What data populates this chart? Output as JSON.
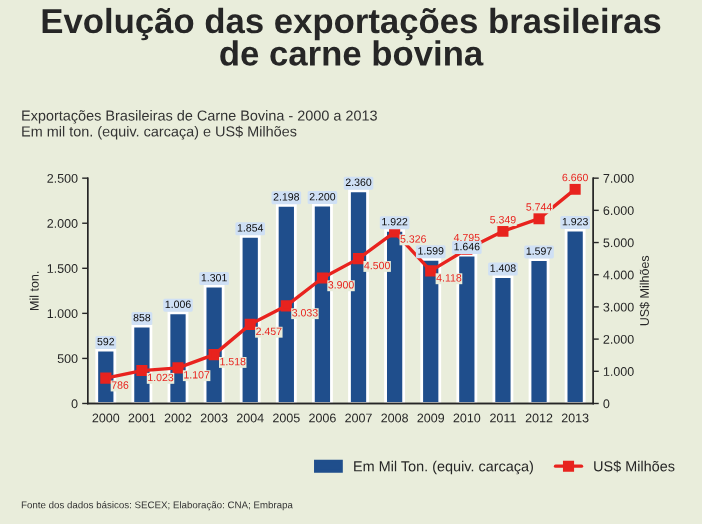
{
  "chart_data": {
    "type": "bar",
    "title": "Evolução das exportações brasileiras\nde carne bovina",
    "subtitle": "Exportações Brasileiras de Carne Bovina - 2000 a 2013\nEm mil ton. (equiv. carcaça) e US$ Milhões",
    "ylabel": "Mil ton.",
    "y2label": "US$ Milhões",
    "categories": [
      "2000",
      "2001",
      "2002",
      "2003",
      "2004",
      "2005",
      "2006",
      "2007",
      "2008",
      "2009",
      "2010",
      "2011",
      "2012",
      "2013"
    ],
    "series": [
      {
        "name": "Em Mil Ton. (equiv. carcaça)",
        "color": "#1f4e8c",
        "values": [
          592,
          858,
          1006,
          1301,
          1854,
          2198,
          2200,
          2360,
          1922,
          1599,
          1646,
          1408,
          1597,
          1923
        ],
        "value_labels": [
          "592",
          "858",
          "1.006",
          "1.301",
          "1.854",
          "2.198",
          "2.200",
          "2.360",
          "1.922",
          "1.599",
          "1.646",
          "1.408",
          "1.597",
          "1.923"
        ]
      },
      {
        "name": "US$ Milhões",
        "type": "line",
        "axis": "y2",
        "color": "#e8231e",
        "marker": "square",
        "values": [
          786,
          1023,
          1107,
          1518,
          2457,
          3033,
          3900,
          4500,
          5326,
          4118,
          4795,
          5349,
          5744,
          6660
        ],
        "value_labels": [
          "786",
          "1.023",
          "1.107",
          "1.518",
          "2.457",
          "3.033",
          "3.900",
          "4.500",
          "5.326",
          "4.118",
          "4.795",
          "5.349",
          "5.744",
          "6.660"
        ]
      }
    ],
    "ylim": [
      0,
      2500
    ],
    "yticks": [
      0,
      500,
      {
        "value": 1000,
        "label": "1.000"
      },
      {
        "value": 1500,
        "label": "1.500"
      },
      {
        "value": 2000,
        "label": "2.000"
      },
      {
        "value": 2500,
        "label": "2.500"
      }
    ],
    "y2lim": [
      0,
      7000
    ],
    "y2ticks": [
      0,
      {
        "value": 1000,
        "label": "1.000"
      },
      {
        "value": 2000,
        "label": "2.000"
      },
      {
        "value": 3000,
        "label": "3.000"
      },
      {
        "value": 4000,
        "label": "4.000"
      },
      {
        "value": 5000,
        "label": "5.000"
      },
      {
        "value": 6000,
        "label": "6.000"
      },
      {
        "value": 7000,
        "label": "7.000"
      }
    ],
    "legend": "bottom",
    "annotations": [
      "Fonte dos dados básicos: SECEX; Elaboração: CNA; Embrapa"
    ]
  }
}
